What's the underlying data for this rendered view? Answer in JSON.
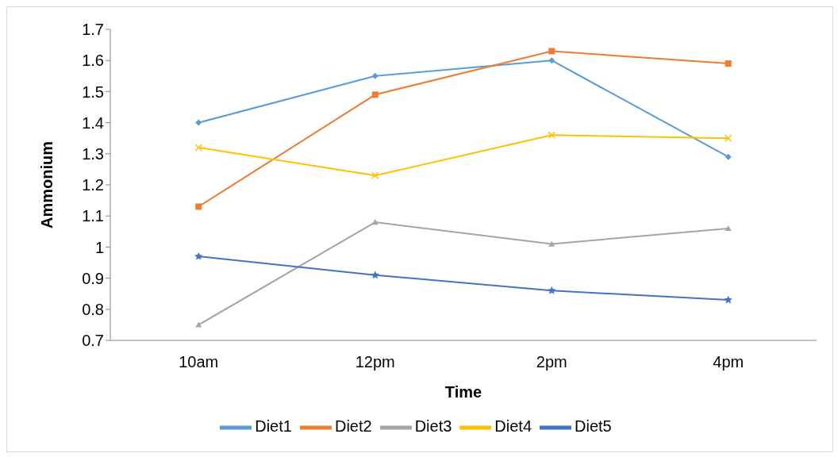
{
  "chart_data": {
    "type": "line",
    "xlabel": "Time",
    "ylabel": "Ammonium",
    "categories": [
      "10am",
      "12pm",
      "2pm",
      "4pm"
    ],
    "ylim": [
      0.7,
      1.7
    ],
    "yticks": [
      0.7,
      0.8,
      0.9,
      1,
      1.1,
      1.2,
      1.3,
      1.4,
      1.5,
      1.6,
      1.7
    ],
    "grid": false,
    "legend": "bottom",
    "series": [
      {
        "name": "Diet1",
        "color": "#5b9bd5",
        "marker": "diamond",
        "values": [
          1.4,
          1.55,
          1.6,
          1.29
        ]
      },
      {
        "name": "Diet2",
        "color": "#ed7d31",
        "marker": "square",
        "values": [
          1.13,
          1.49,
          1.63,
          1.59
        ]
      },
      {
        "name": "Diet3",
        "color": "#a5a5a5",
        "marker": "triangle",
        "values": [
          0.75,
          1.08,
          1.01,
          1.06
        ]
      },
      {
        "name": "Diet4",
        "color": "#ffc000",
        "marker": "cross",
        "values": [
          1.32,
          1.23,
          1.36,
          1.35
        ]
      },
      {
        "name": "Diet5",
        "color": "#4472c4",
        "marker": "star",
        "values": [
          0.97,
          0.91,
          0.86,
          0.83
        ]
      }
    ]
  }
}
